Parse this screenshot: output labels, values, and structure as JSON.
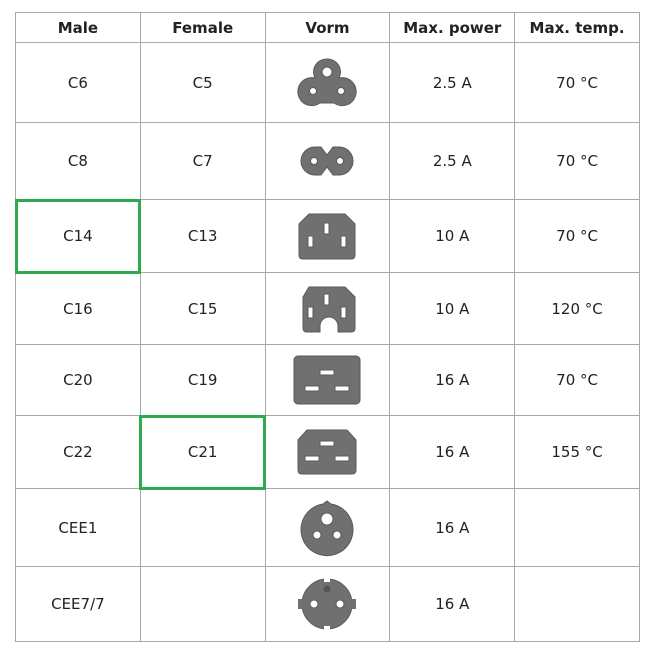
{
  "columns": [
    "Male",
    "Female",
    "Vorm",
    "Max. power",
    "Max. temp."
  ],
  "rows": [
    {
      "male": "C6",
      "female": "C5",
      "shape": "c5-cloverleaf-icon",
      "power": "2.5 A",
      "temp": "70 °C"
    },
    {
      "male": "C8",
      "female": "C7",
      "shape": "c7-figure8-icon",
      "power": "2.5 A",
      "temp": "70 °C"
    },
    {
      "male": "C14",
      "female": "C13",
      "shape": "c13-connector-icon",
      "power": "10 A",
      "temp": "70 °C",
      "highlight": "male"
    },
    {
      "male": "C16",
      "female": "C15",
      "shape": "c15-connector-icon",
      "power": "10 A",
      "temp": "120 °C"
    },
    {
      "male": "C20",
      "female": "C19",
      "shape": "c19-connector-icon",
      "power": "16 A",
      "temp": "70 °C"
    },
    {
      "male": "C22",
      "female": "C21",
      "shape": "c21-connector-icon",
      "power": "16 A",
      "temp": "155 °C",
      "highlight": "female"
    },
    {
      "male": "CEE1",
      "female": "",
      "shape": "cee1-socket-icon",
      "power": "16 A",
      "temp": ""
    },
    {
      "male": "CEE7/7",
      "female": "",
      "shape": "cee77-schuko-icon",
      "power": "16 A",
      "temp": ""
    }
  ],
  "colors": {
    "highlight": "#2faa4e",
    "icon": "#707070",
    "grid": "#a8a8a8"
  }
}
